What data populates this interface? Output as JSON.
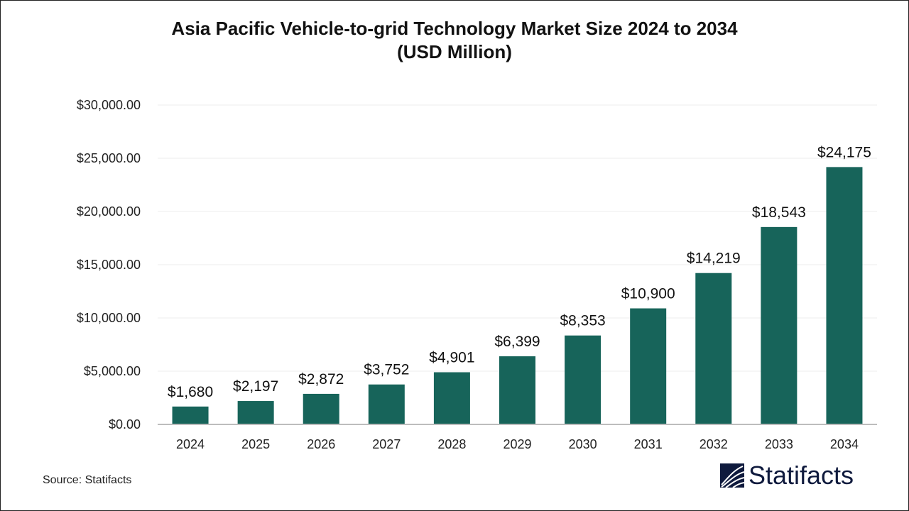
{
  "chart_data": {
    "type": "bar",
    "title_line1": "Asia Pacific Vehicle-to-grid Technology Market Size 2024 to 2034",
    "title_line2": "(USD Million)",
    "categories": [
      "2024",
      "2025",
      "2026",
      "2027",
      "2028",
      "2029",
      "2030",
      "2031",
      "2032",
      "2033",
      "2034"
    ],
    "values": [
      1680,
      2197,
      2872,
      3752,
      4901,
      6399,
      8353,
      10900,
      14219,
      18543,
      24175
    ],
    "data_labels": [
      "$1,680",
      "$2,197",
      "$2,872",
      "$3,752",
      "$4,901",
      "$6,399",
      "$8,353",
      "$10,900",
      "$14,219",
      "$18,543",
      "$24,175"
    ],
    "yticks": [
      0,
      5000,
      10000,
      15000,
      20000,
      25000,
      30000
    ],
    "ytick_labels": [
      "$0.00",
      "$5,000.00",
      "$10,000.00",
      "$15,000.00",
      "$20,000.00",
      "$25,000.00",
      "$30,000.00"
    ],
    "ylim": [
      0,
      30000
    ],
    "xlabel": "",
    "ylabel": "",
    "grid": true,
    "bar_color": "#17645a"
  },
  "source": "Source: Statifacts",
  "logo": {
    "text": "Statifacts",
    "color": "#0f1a3d"
  }
}
